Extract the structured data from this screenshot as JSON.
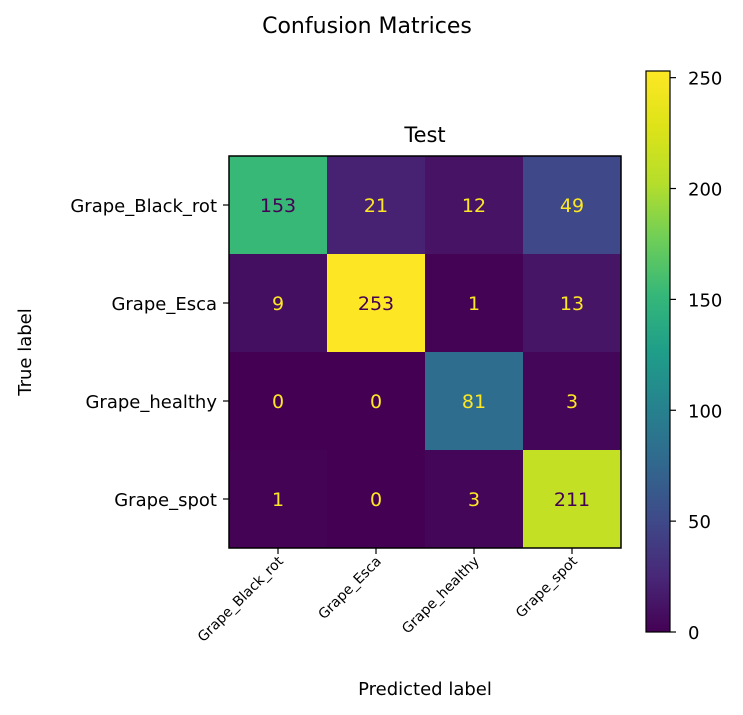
{
  "chart_data": {
    "type": "heatmap",
    "suptitle": "Confusion Matrices",
    "title": "Test",
    "xlabel": "Predicted label",
    "ylabel": "True label",
    "row_labels": [
      "Grape_Black_rot",
      "Grape_Esca",
      "Grape_healthy",
      "Grape_spot"
    ],
    "col_labels": [
      "Grape_Black_rot",
      "Grape_Esca",
      "Grape_healthy",
      "Grape_spot"
    ],
    "values": [
      [
        153,
        21,
        12,
        49
      ],
      [
        9,
        253,
        1,
        13
      ],
      [
        0,
        0,
        81,
        3
      ],
      [
        1,
        0,
        3,
        211
      ]
    ],
    "colormap": "viridis",
    "vmin": 0,
    "vmax": 253,
    "colorbar_ticks": [
      0,
      50,
      100,
      150,
      200,
      250
    ],
    "text_colors": {
      "low": "#fde725",
      "high": "#440154"
    }
  }
}
